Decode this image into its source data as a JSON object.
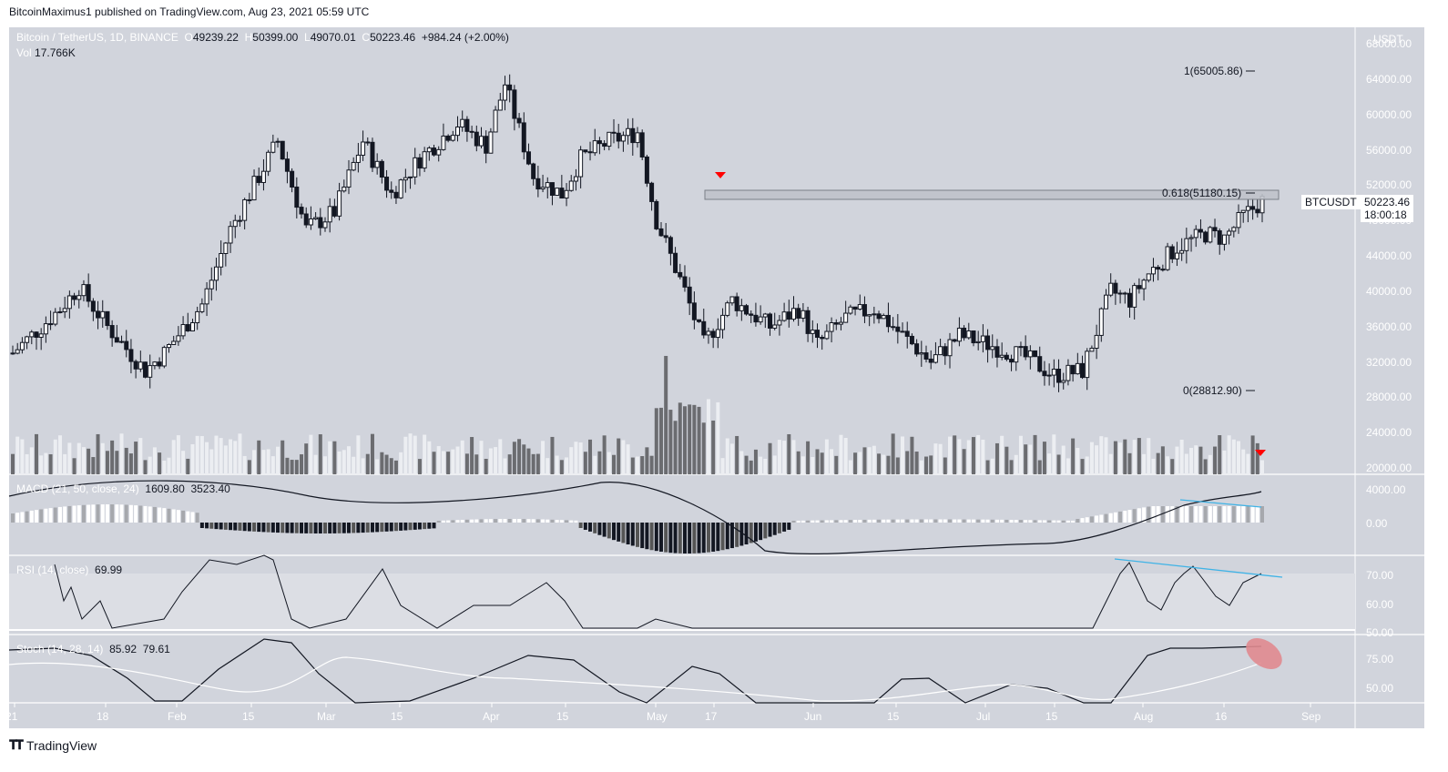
{
  "header": {
    "text": "BitcoinMaximus1 published on TradingView.com, Aug 23, 2021 05:59 UTC"
  },
  "legend": {
    "symbol": "Bitcoin / TetherUS, 1D, BINANCE",
    "o_label": "O",
    "o": "49239.22",
    "h_label": "H",
    "h": "50399.00",
    "l_label": "L",
    "l": "49070.01",
    "c_label": "C",
    "c": "50223.46",
    "change": "+984.24 (+2.00%)",
    "vol_label": "Vol",
    "vol": "17.766K"
  },
  "price_axis": {
    "currency": "USDT",
    "ticks": [
      "68000.00",
      "64000.00",
      "60000.00",
      "56000.00",
      "52000.00",
      "48000.00",
      "44000.00",
      "40000.00",
      "36000.00",
      "32000.00",
      "28000.00",
      "24000.00",
      "20000.00"
    ]
  },
  "last_price": {
    "symbol_tag": "BTCUSDT",
    "price": "50223.46",
    "countdown": "18:00:18"
  },
  "fib": {
    "level_1": "1(65005.86)",
    "level_0618": "0.618(51180.15)",
    "level_0": "0(28812.90)"
  },
  "macd": {
    "label": "MACD (21, 50, close, 24)",
    "v1": "1609.80",
    "v2": "3523.40",
    "ticks": [
      "4000.00",
      "0.00"
    ]
  },
  "rsi": {
    "label": "RSI (14, close)",
    "value": "69.99",
    "ticks": [
      "70.00",
      "60.00",
      "50.00"
    ]
  },
  "stoch": {
    "label": "Stoch (14, 28, 14)",
    "k": "85.92",
    "d": "79.61",
    "ticks": [
      "75.00",
      "50.00"
    ]
  },
  "time_axis": {
    "ticks": [
      "21",
      "18",
      "Feb",
      "15",
      "Mar",
      "15",
      "Apr",
      "15",
      "May",
      "17",
      "Jun",
      "15",
      "Jul",
      "15",
      "Aug",
      "16",
      "Sep"
    ]
  },
  "footer": {
    "brand": "TradingView"
  },
  "colors": {
    "bg": "#d1d4dc",
    "up": "#ffffff",
    "down": "#131722",
    "marker": "#ff0000",
    "trendline": "#3fb3e6",
    "highlight": "#e08a8f"
  },
  "chart_data": {
    "type": "candlestick",
    "title": "Bitcoin / TetherUS, 1D, BINANCE",
    "xlabel": "",
    "ylabel": "USDT",
    "ylim": [
      20000,
      68000
    ],
    "x": [
      "Jan 2021",
      "Feb",
      "Mar",
      "Apr",
      "May",
      "Jun",
      "Jul",
      "Aug",
      "Sep"
    ],
    "approx_monthly_close": [
      33000,
      45000,
      58800,
      57700,
      37300,
      35000,
      41500,
      50223
    ],
    "last_candle": {
      "open": 49239.22,
      "high": 50399.0,
      "low": 49070.01,
      "close": 50223.46,
      "volume": "17.766K"
    },
    "annotations": [
      "Fib retracement: 1 = 65005.86, 0.618 = 51180.15, 0 = 28812.90",
      "Resistance box at 0.618 (~51180)",
      "Red down-arrow markers at mid-May and on current volume",
      "Bearish divergence trendlines on MACD histogram and RSI",
      "Stochastic highlighted near 85.92 / 79.61"
    ],
    "indicators": {
      "macd": {
        "params": "21, 50, close, 24",
        "histogram": 1609.8,
        "macd": 3523.4
      },
      "rsi": {
        "params": "14, close",
        "value": 69.99
      },
      "stoch": {
        "params": "14, 28, 14",
        "k": 85.92,
        "d": 79.61
      }
    }
  }
}
